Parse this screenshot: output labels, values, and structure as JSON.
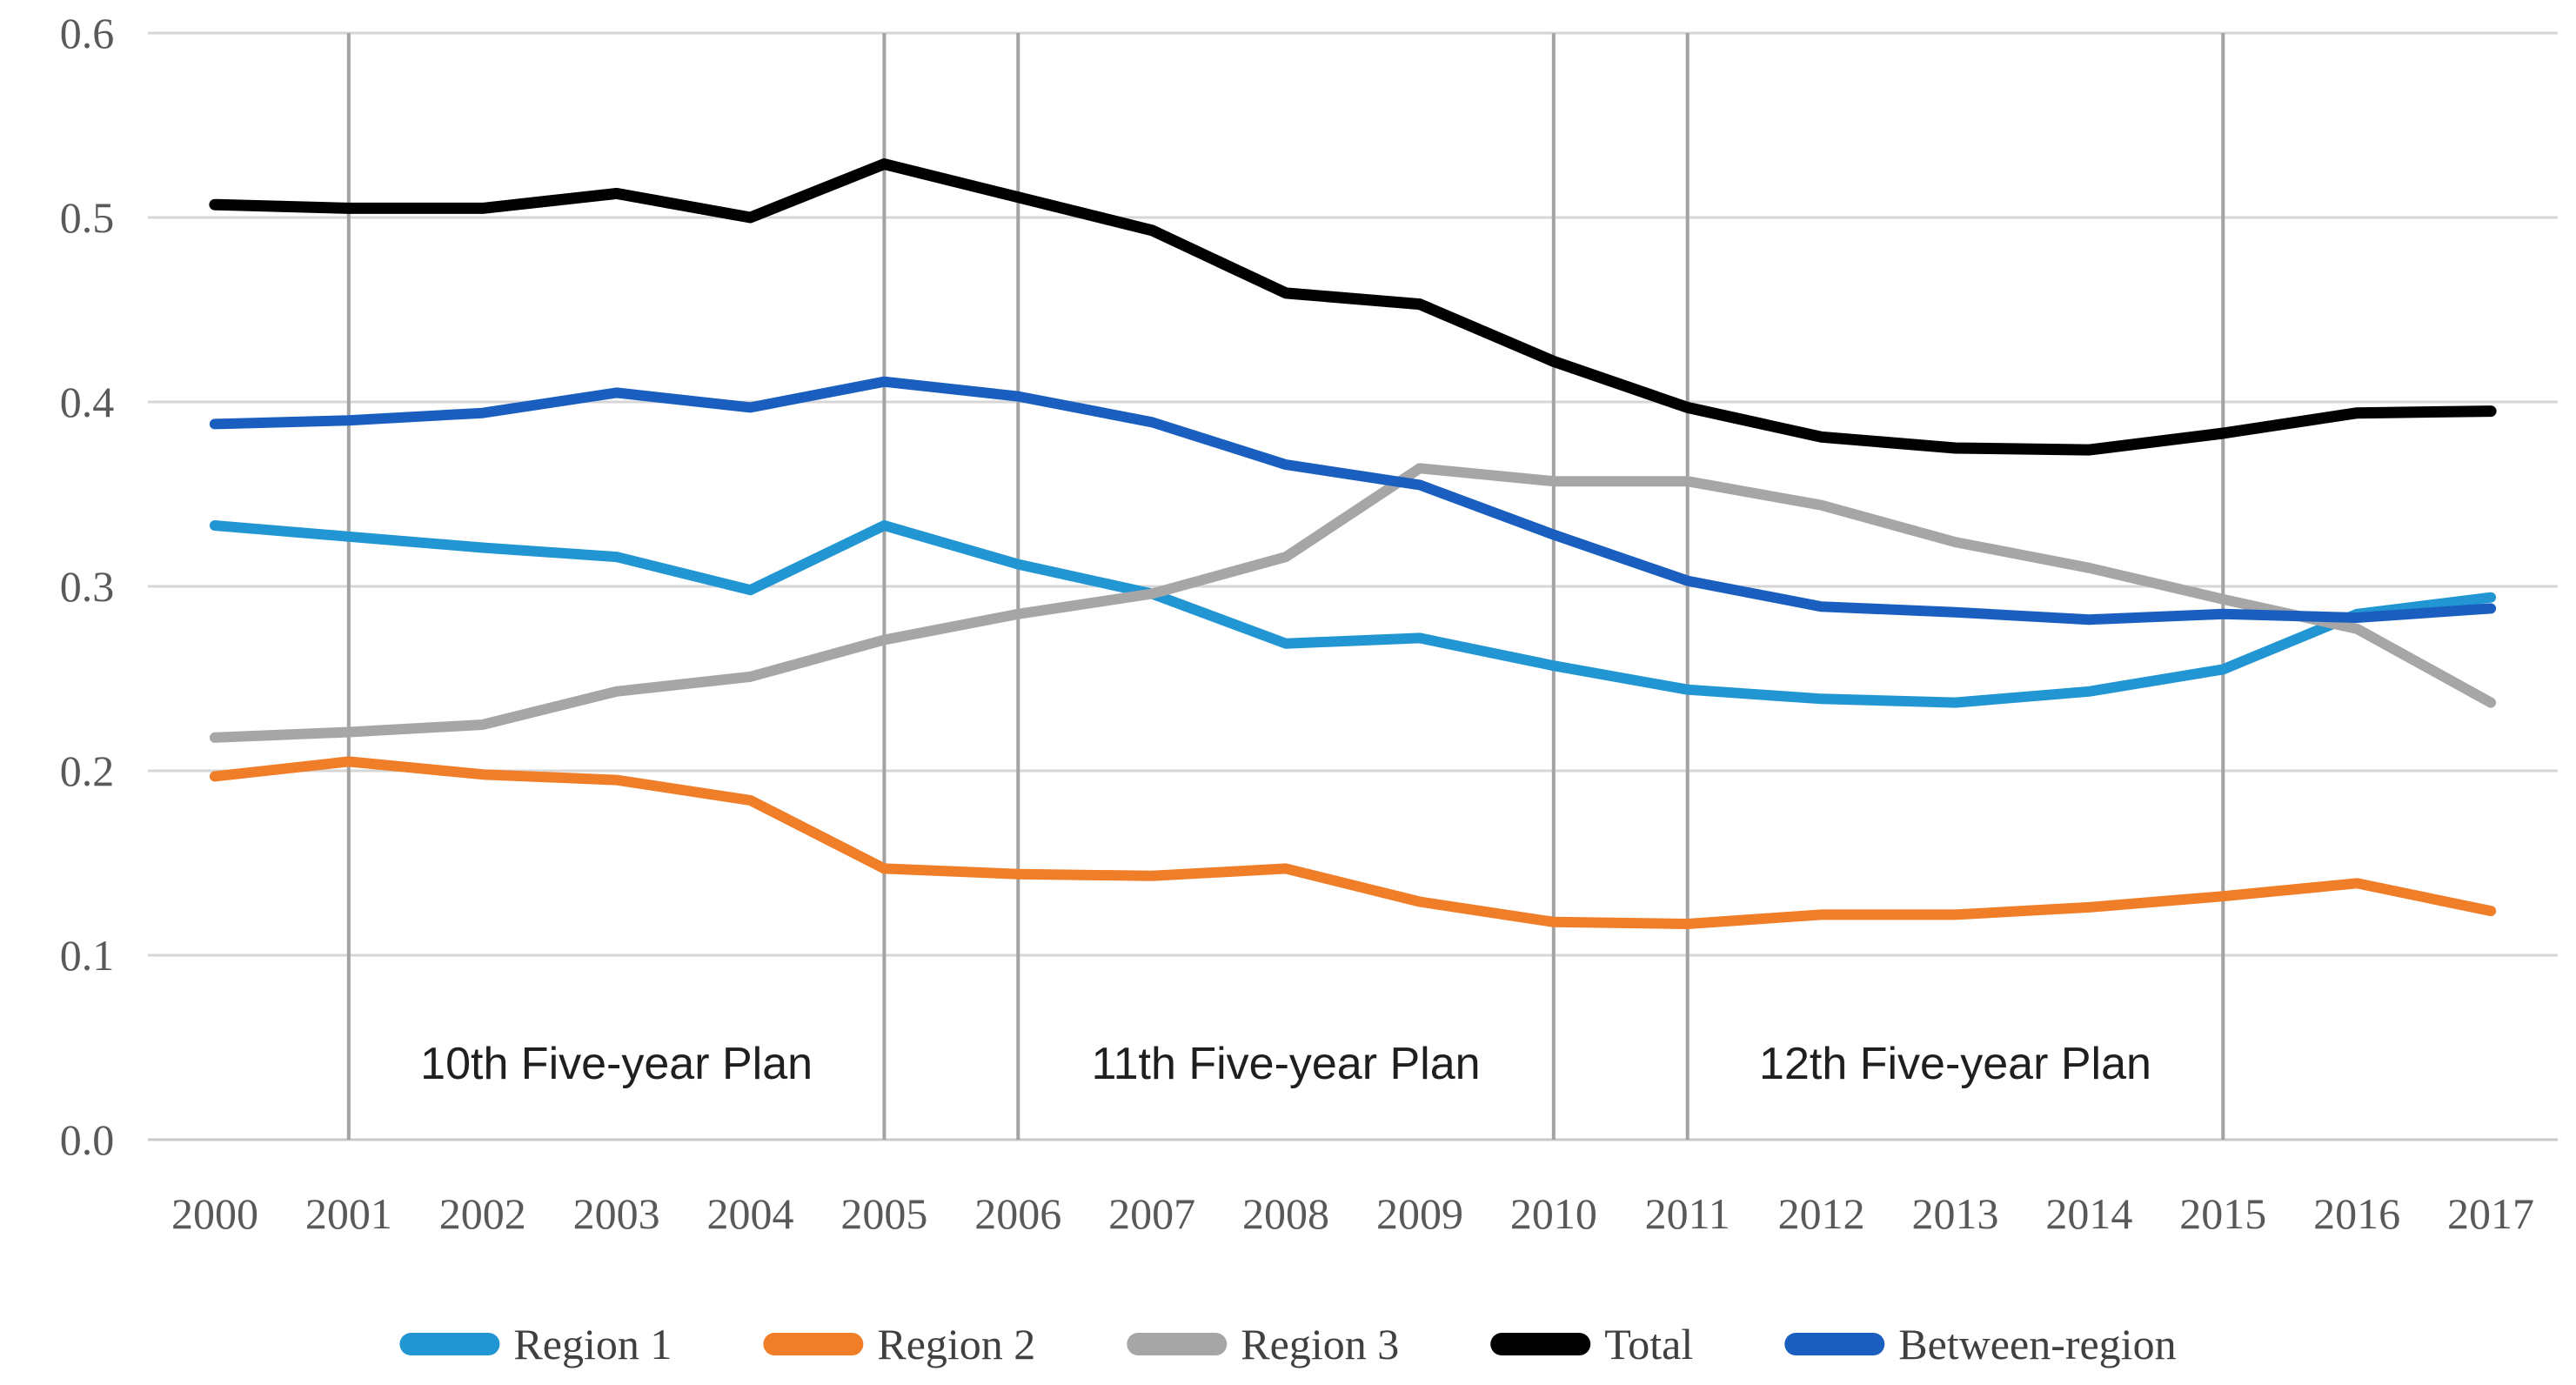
{
  "figure": {
    "description": "Line chart of inequality index decomposition by region, 2000-2017, with Five-year Plan period annotations"
  },
  "chart_data": {
    "type": "line",
    "title": "",
    "xlabel": "",
    "ylabel": "",
    "x": [
      "2000",
      "2001",
      "2002",
      "2003",
      "2004",
      "2005",
      "2006",
      "2007",
      "2008",
      "2009",
      "2010",
      "2011",
      "2012",
      "2013",
      "2014",
      "2015",
      "2016",
      "2017"
    ],
    "y_ticks": [
      "0.0",
      "0.1",
      "0.2",
      "0.3",
      "0.4",
      "0.5",
      "0.6"
    ],
    "ylim": [
      0.0,
      0.6
    ],
    "grid": "horizontal-light, vertical-markers",
    "vertical_gridline_years": [
      "2001",
      "2005",
      "2006",
      "2010",
      "2011",
      "2015"
    ],
    "legend_position": "bottom-center",
    "annotations": [
      {
        "text": "10th Five-year Plan",
        "between": [
          "2001",
          "2005"
        ]
      },
      {
        "text": "11th Five-year Plan",
        "between": [
          "2006",
          "2010"
        ]
      },
      {
        "text": "12th Five-year Plan",
        "between": [
          "2011",
          "2015"
        ]
      }
    ],
    "series": [
      {
        "name": "Region 1",
        "color": "#2296D3",
        "values": [
          0.333,
          0.327,
          0.321,
          0.316,
          0.298,
          0.333,
          0.312,
          0.296,
          0.269,
          0.272,
          0.257,
          0.244,
          0.239,
          0.237,
          0.243,
          0.255,
          0.285,
          0.294
        ]
      },
      {
        "name": "Region 2",
        "color": "#F07D28",
        "values": [
          0.197,
          0.205,
          0.198,
          0.195,
          0.184,
          0.147,
          0.144,
          0.143,
          0.147,
          0.129,
          0.118,
          0.117,
          0.122,
          0.122,
          0.126,
          0.132,
          0.139,
          0.124
        ]
      },
      {
        "name": "Region 3",
        "color": "#A6A6A6",
        "values": [
          0.218,
          0.221,
          0.225,
          0.243,
          0.251,
          0.271,
          0.285,
          0.296,
          0.316,
          0.364,
          0.357,
          0.357,
          0.344,
          0.324,
          0.31,
          0.293,
          0.277,
          0.237
        ]
      },
      {
        "name": "Total",
        "color": "#000000",
        "values": [
          0.507,
          0.505,
          0.505,
          0.513,
          0.5,
          0.529,
          0.511,
          0.493,
          0.459,
          0.453,
          0.422,
          0.397,
          0.381,
          0.375,
          0.374,
          0.383,
          0.394,
          0.395
        ]
      },
      {
        "name": "Between-region",
        "color": "#1A5FC0",
        "values": [
          0.388,
          0.39,
          0.394,
          0.405,
          0.397,
          0.411,
          0.403,
          0.389,
          0.366,
          0.355,
          0.328,
          0.303,
          0.289,
          0.286,
          0.282,
          0.285,
          0.283,
          0.288
        ]
      }
    ],
    "style": {
      "background": "#ffffff",
      "h_grid_color": "#d6d6d6",
      "v_grid_color": "#a3a3a3",
      "tick_label_color": "#595959",
      "annotation_color": "#1f1f1f",
      "legend_label_color": "#404040",
      "line_width_colored": 12,
      "line_width_total": 13
    }
  }
}
